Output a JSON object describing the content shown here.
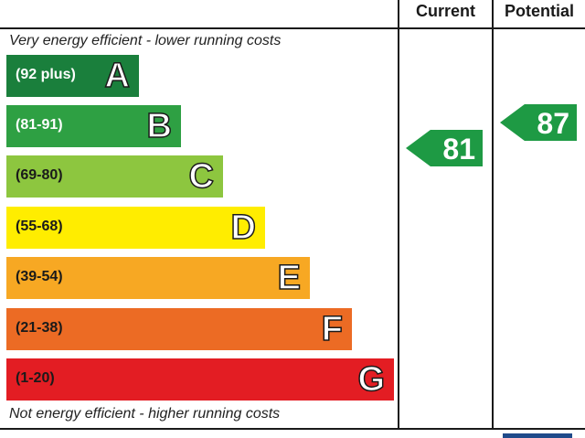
{
  "header": {
    "current_label": "Current",
    "potential_label": "Potential"
  },
  "captions": {
    "top": "Very energy efficient - lower running costs",
    "bottom": "Not energy efficient - higher running costs"
  },
  "chart_data": {
    "type": "bar",
    "bands": [
      {
        "letter": "A",
        "range": "(92 plus)",
        "min": 92,
        "max": 100,
        "color": "#1a7f3c",
        "text_color": "#ffffff"
      },
      {
        "letter": "B",
        "range": "(81-91)",
        "min": 81,
        "max": 91,
        "color": "#2ea043",
        "text_color": "#ffffff"
      },
      {
        "letter": "C",
        "range": "(69-80)",
        "min": 69,
        "max": 80,
        "color": "#8dc63f",
        "text_color": "#1a1a1a"
      },
      {
        "letter": "D",
        "range": "(55-68)",
        "min": 55,
        "max": 68,
        "color": "#ffed00",
        "text_color": "#1a1a1a"
      },
      {
        "letter": "E",
        "range": "(39-54)",
        "min": 39,
        "max": 54,
        "color": "#f7a823",
        "text_color": "#1a1a1a"
      },
      {
        "letter": "F",
        "range": "(21-38)",
        "min": 21,
        "max": 38,
        "color": "#ec6b24",
        "text_color": "#1a1a1a"
      },
      {
        "letter": "G",
        "range": "(1-20)",
        "min": 1,
        "max": 20,
        "color": "#e31d23",
        "text_color": "#1a1a1a"
      }
    ],
    "ratings": {
      "current": {
        "value": 81,
        "band": "B",
        "color": "#1e9a44"
      },
      "potential": {
        "value": 87,
        "band": "B",
        "color": "#1e9a44"
      }
    }
  }
}
